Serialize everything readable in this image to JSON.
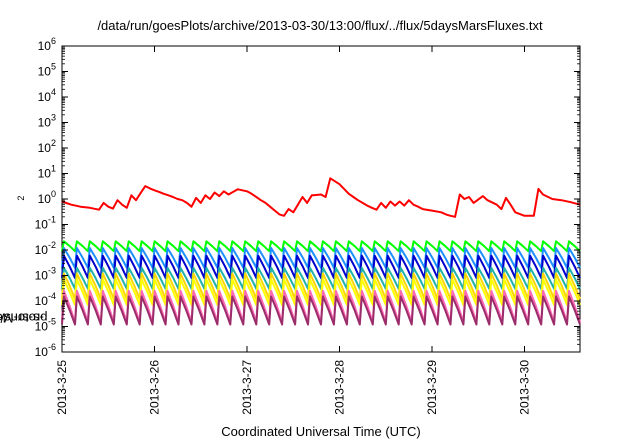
{
  "chart_data": {
    "type": "line",
    "title": "/data/run/goesPlots/archive/2013-03-30/13:00/flux/../flux/5daysMarsFluxes.txt",
    "xlabel": "Coordinated Universal Time (UTC)",
    "ylabel": {
      "prefix": "protons/cm",
      "sup": "2",
      "suffix": "-s-sr-MeV"
    },
    "x_tick_labels": [
      "2013-3-25",
      "2013-3-26",
      "2013-3-27",
      "2013-3-28",
      "2013-3-29",
      "2013-3-30"
    ],
    "x_range_days": [
      0,
      5.6
    ],
    "y_scale": "log",
    "ylim": [
      1e-06,
      1000000.0
    ],
    "y_tick_exponents": [
      -6,
      -5,
      -4,
      -3,
      -2,
      -1,
      0,
      1,
      2,
      3,
      4,
      5,
      6
    ],
    "y_tick_base": "10",
    "grid": false,
    "series": [
      {
        "color": "#ff0000",
        "x": [
          0.0,
          0.1,
          0.2,
          0.3,
          0.4,
          0.45,
          0.5,
          0.55,
          0.6,
          0.6,
          0.65,
          0.7,
          0.75,
          0.75,
          0.8,
          0.85,
          0.85,
          0.9,
          0.95,
          1.0,
          1.05,
          1.1,
          1.15,
          1.2,
          1.25,
          1.3,
          1.35,
          1.4,
          1.4,
          1.45,
          1.5,
          1.5,
          1.55,
          1.6,
          1.6,
          1.65,
          1.7,
          1.7,
          1.75,
          1.8,
          1.8,
          1.9,
          2.0,
          2.05,
          2.1,
          2.15,
          2.2,
          2.25,
          2.3,
          2.35,
          2.4,
          2.45,
          2.45,
          2.5,
          2.55,
          2.55,
          2.6,
          2.65,
          2.7,
          2.72,
          2.8,
          2.85,
          2.9,
          3.0,
          3.05,
          3.1,
          3.15,
          3.2,
          3.25,
          3.3,
          3.35,
          3.4,
          3.45,
          3.5,
          3.55,
          3.6,
          3.65,
          3.7,
          3.75,
          3.8,
          3.85,
          3.9,
          3.9,
          4.0,
          4.1,
          4.15,
          4.2,
          4.25,
          4.3,
          4.35,
          4.4,
          4.45,
          4.45,
          4.55,
          4.6,
          4.6,
          4.7,
          4.75,
          4.8,
          4.85,
          4.9,
          4.9,
          5.0,
          5.1,
          5.15,
          5.2,
          5.2,
          5.3,
          5.4,
          5.5,
          5.6
        ],
        "y": [
          0.8,
          0.6,
          0.5,
          0.45,
          0.38,
          0.7,
          0.5,
          0.42,
          0.9,
          0.9,
          0.6,
          0.45,
          1.4,
          1.4,
          0.9,
          1.7,
          1.7,
          3.2,
          2.6,
          2.2,
          1.9,
          1.6,
          1.4,
          1.2,
          1.0,
          0.9,
          0.7,
          0.5,
          0.5,
          1.1,
          0.7,
          0.7,
          1.4,
          1.0,
          1.0,
          1.8,
          1.3,
          1.3,
          2.0,
          1.5,
          1.5,
          2.4,
          2.0,
          1.6,
          1.2,
          0.9,
          0.7,
          0.5,
          0.35,
          0.25,
          0.22,
          0.4,
          0.4,
          0.3,
          0.6,
          0.6,
          1.2,
          0.7,
          1.4,
          1.4,
          1.5,
          1.2,
          6.5,
          3.8,
          2.5,
          1.6,
          1.2,
          0.9,
          0.7,
          0.55,
          0.45,
          0.38,
          0.7,
          0.45,
          0.8,
          0.55,
          0.8,
          0.55,
          0.9,
          0.6,
          0.5,
          0.4,
          0.4,
          0.35,
          0.3,
          0.25,
          0.22,
          0.2,
          1.5,
          1.0,
          1.2,
          0.7,
          0.7,
          1.3,
          0.9,
          0.9,
          0.6,
          0.4,
          1.1,
          0.6,
          0.3,
          0.3,
          0.22,
          0.22,
          2.5,
          1.5,
          1.5,
          1.0,
          0.9,
          0.75,
          0.6
        ]
      },
      {
        "color": "#00ff00",
        "sawtooth": {
          "count": 40,
          "peak": 0.022,
          "trough": 0.009
        }
      },
      {
        "color": "#1e90ff",
        "sawtooth": {
          "count": 40,
          "peak": 0.012,
          "trough": 0.002
        }
      },
      {
        "color": "#0000cd",
        "sawtooth": {
          "count": 40,
          "peak": 0.006,
          "trough": 0.0008
        }
      },
      {
        "color": "#20b2aa",
        "sawtooth": {
          "count": 40,
          "peak": 0.002,
          "trough": 0.0003
        }
      },
      {
        "color": "#ffd700",
        "sawtooth": {
          "count": 40,
          "peak": 0.0012,
          "trough": 0.00012
        }
      },
      {
        "color": "#ffff00",
        "sawtooth": {
          "count": 40,
          "peak": 0.0007,
          "trough": 7e-05
        }
      },
      {
        "color": "#ff69b4",
        "sawtooth": {
          "count": 40,
          "peak": 0.00025,
          "trough": 1.5e-05
        }
      },
      {
        "color": "#9b2d6b",
        "sawtooth": {
          "count": 40,
          "peak": 0.00015,
          "trough": 1.2e-05
        }
      }
    ]
  }
}
